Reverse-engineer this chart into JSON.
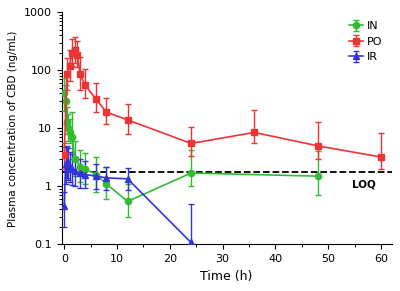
{
  "title": "",
  "xlabel": "Time (h)",
  "ylabel": "Plasma concentration of CBD (ng/mL)",
  "ylim": [
    0.1,
    1000
  ],
  "xlim": [
    0,
    62
  ],
  "IN_x": [
    0,
    0.25,
    0.5,
    0.75,
    1,
    1.5,
    2,
    3,
    4,
    6,
    8,
    12,
    24,
    48
  ],
  "IN_y": [
    40,
    30,
    13,
    10,
    8.5,
    7,
    3.0,
    2.2,
    2.0,
    1.6,
    1.1,
    0.55,
    1.7,
    1.5
  ],
  "IN_ylo": [
    20,
    18,
    5,
    4,
    3,
    4,
    1.5,
    1.0,
    0.9,
    0.8,
    0.5,
    0.25,
    0.7,
    0.8
  ],
  "IN_yhi": [
    35,
    25,
    10,
    8,
    6,
    12,
    3.0,
    2.0,
    1.8,
    1.6,
    1.1,
    0.55,
    2.5,
    2.5
  ],
  "PO_x": [
    0,
    0.5,
    1,
    1.5,
    2,
    2.5,
    3,
    4,
    6,
    8,
    12,
    24,
    36,
    48,
    60
  ],
  "PO_y": [
    3.5,
    85,
    120,
    200,
    220,
    185,
    85,
    55,
    32,
    19,
    14,
    5.5,
    8.5,
    5.0,
    3.2
  ],
  "PO_ylo": [
    1.5,
    40,
    55,
    80,
    85,
    70,
    40,
    22,
    13,
    7,
    6,
    2.2,
    3.0,
    2.0,
    1.2
  ],
  "PO_yhi": [
    2.0,
    80,
    100,
    150,
    155,
    140,
    85,
    50,
    28,
    14,
    12,
    5.0,
    12,
    8,
    5
  ],
  "IR_x": [
    0,
    0.25,
    0.5,
    0.75,
    1,
    1.5,
    2,
    3,
    4,
    6,
    8,
    12,
    24
  ],
  "IR_y": [
    0.45,
    2.4,
    2.7,
    2.5,
    2.2,
    2.0,
    1.85,
    1.7,
    1.6,
    1.5,
    1.4,
    1.35,
    0.108
  ],
  "IR_ylo": [
    0.25,
    1.3,
    1.3,
    1.2,
    1.0,
    0.95,
    0.85,
    0.75,
    0.65,
    0.6,
    0.55,
    0.5,
    0.04
  ],
  "IR_yhi": [
    0.35,
    2.3,
    2.3,
    2.1,
    1.7,
    1.55,
    1.35,
    1.25,
    1.1,
    0.95,
    0.8,
    0.7,
    0.38
  ],
  "LOQ": 1.8,
  "IN_color": "#33bb33",
  "PO_color": "#ee3333",
  "IR_color": "#3333dd",
  "LOQ_color": "#000000"
}
